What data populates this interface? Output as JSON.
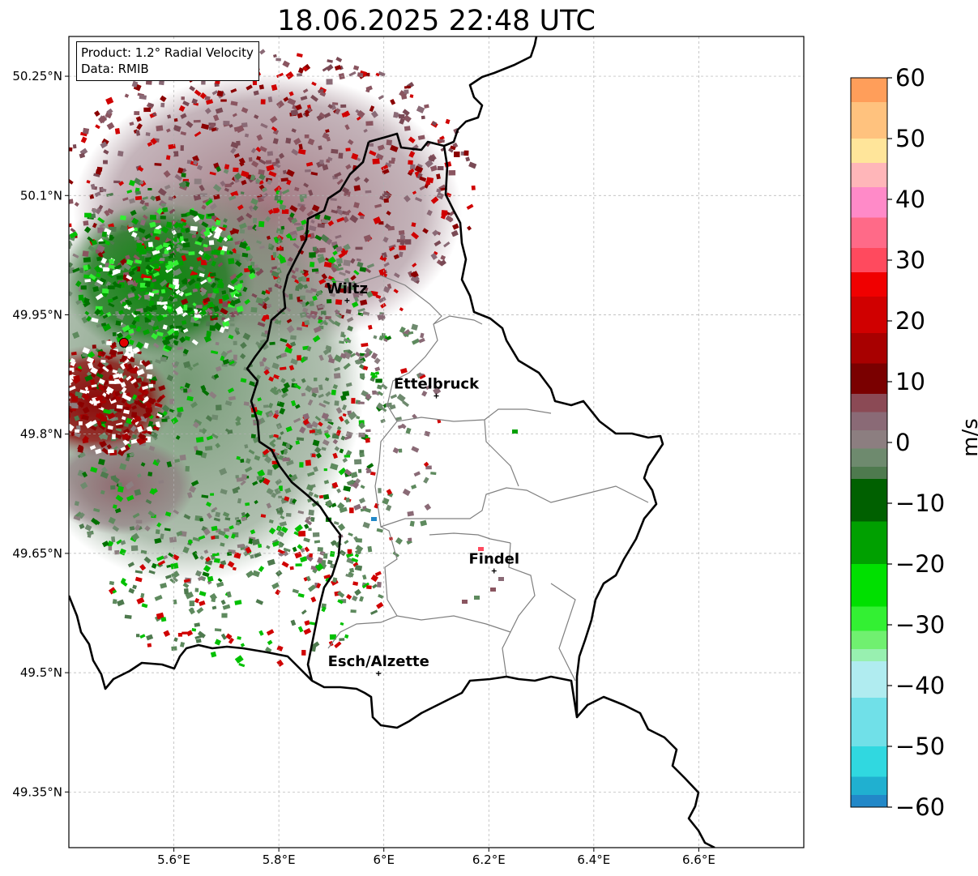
{
  "title": "18.06.2025 22:48 UTC",
  "info": {
    "product": "Product: 1.2° Radial Velocity",
    "data": "Data: RMIB"
  },
  "map_extent": {
    "lon_min": 5.4,
    "lon_max": 6.8,
    "lat_min": 49.28,
    "lat_max": 50.3
  },
  "lon_ticks": [
    {
      "value": 5.6,
      "label": "5.6°E"
    },
    {
      "value": 5.8,
      "label": "5.8°E"
    },
    {
      "value": 6.0,
      "label": "6°E"
    },
    {
      "value": 6.2,
      "label": "6.2°E"
    },
    {
      "value": 6.4,
      "label": "6.4°E"
    },
    {
      "value": 6.6,
      "label": "6.6°E"
    }
  ],
  "lat_ticks": [
    {
      "value": 50.25,
      "label": "50.25°N"
    },
    {
      "value": 50.1,
      "label": "50.1°N"
    },
    {
      "value": 49.95,
      "label": "49.95°N"
    },
    {
      "value": 49.8,
      "label": "49.8°N"
    },
    {
      "value": 49.65,
      "label": "49.65°N"
    },
    {
      "value": 49.5,
      "label": "49.5°N"
    },
    {
      "value": 49.35,
      "label": "49.35°N"
    }
  ],
  "cities": [
    {
      "name": "Wiltz",
      "lon": 5.93,
      "lat": 49.968
    },
    {
      "name": "Ettelbruck",
      "lon": 6.1,
      "lat": 49.848
    },
    {
      "name": "Findel",
      "lon": 6.21,
      "lat": 49.628
    },
    {
      "name": "Esch/Alzette",
      "lon": 5.99,
      "lat": 49.499
    }
  ],
  "radar_site": {
    "lon": 5.505,
    "lat": 49.915,
    "color": "#e00000"
  },
  "colorbar": {
    "label": "m/s",
    "min": -60,
    "max": 60,
    "ticks": [
      {
        "value": 60,
        "label": "60"
      },
      {
        "value": 50,
        "label": "50"
      },
      {
        "value": 40,
        "label": "40"
      },
      {
        "value": 30,
        "label": "30"
      },
      {
        "value": 20,
        "label": "20"
      },
      {
        "value": 10,
        "label": "10"
      },
      {
        "value": 0,
        "label": "0"
      },
      {
        "value": -10,
        "label": "−10"
      },
      {
        "value": -20,
        "label": "−20"
      },
      {
        "value": -30,
        "label": "−30"
      },
      {
        "value": -40,
        "label": "−40"
      },
      {
        "value": -50,
        "label": "−50"
      },
      {
        "value": -60,
        "label": "−60"
      }
    ],
    "stops": [
      {
        "from": 56,
        "to": 60,
        "color": "#ff9e5a"
      },
      {
        "from": 50,
        "to": 56,
        "color": "#ffc27e"
      },
      {
        "from": 46,
        "to": 50,
        "color": "#ffe59a"
      },
      {
        "from": 42,
        "to": 46,
        "color": "#ffb6b9"
      },
      {
        "from": 37,
        "to": 42,
        "color": "#ff8ac8"
      },
      {
        "from": 32,
        "to": 37,
        "color": "#ff6a88"
      },
      {
        "from": 28,
        "to": 32,
        "color": "#ff4a5e"
      },
      {
        "from": 24,
        "to": 28,
        "color": "#f00000"
      },
      {
        "from": 18,
        "to": 24,
        "color": "#d00000"
      },
      {
        "from": 13,
        "to": 18,
        "color": "#a80000"
      },
      {
        "from": 8,
        "to": 13,
        "color": "#7a0000"
      },
      {
        "from": 5,
        "to": 8,
        "color": "#8b4a55"
      },
      {
        "from": 2,
        "to": 5,
        "color": "#8a6a76"
      },
      {
        "from": -1,
        "to": 2,
        "color": "#8c7e80"
      },
      {
        "from": -4,
        "to": -1,
        "color": "#6e8a6e"
      },
      {
        "from": -6,
        "to": -4,
        "color": "#4e7a4e"
      },
      {
        "from": -13,
        "to": -6,
        "color": "#006000"
      },
      {
        "from": -20,
        "to": -13,
        "color": "#00a000"
      },
      {
        "from": -27,
        "to": -20,
        "color": "#00e000"
      },
      {
        "from": -31,
        "to": -27,
        "color": "#33f033"
      },
      {
        "from": -34,
        "to": -31,
        "color": "#70f070"
      },
      {
        "from": -36,
        "to": -34,
        "color": "#98f0b0"
      },
      {
        "from": -42,
        "to": -36,
        "color": "#b0ecf0"
      },
      {
        "from": -50,
        "to": -42,
        "color": "#70e0e8"
      },
      {
        "from": -55,
        "to": -50,
        "color": "#30d8e0"
      },
      {
        "from": -58,
        "to": -55,
        "color": "#20b0d0"
      },
      {
        "from": -60,
        "to": -58,
        "color": "#2288c8"
      }
    ]
  },
  "colors": {
    "border": "#000000",
    "canton": "#808080",
    "grid": "#b0b0b0",
    "echo_outbound": "#8a5560",
    "echo_inbound": "#5e8a5e",
    "echo_strong_out": "#8b0000",
    "echo_strong_in": "#007000"
  }
}
